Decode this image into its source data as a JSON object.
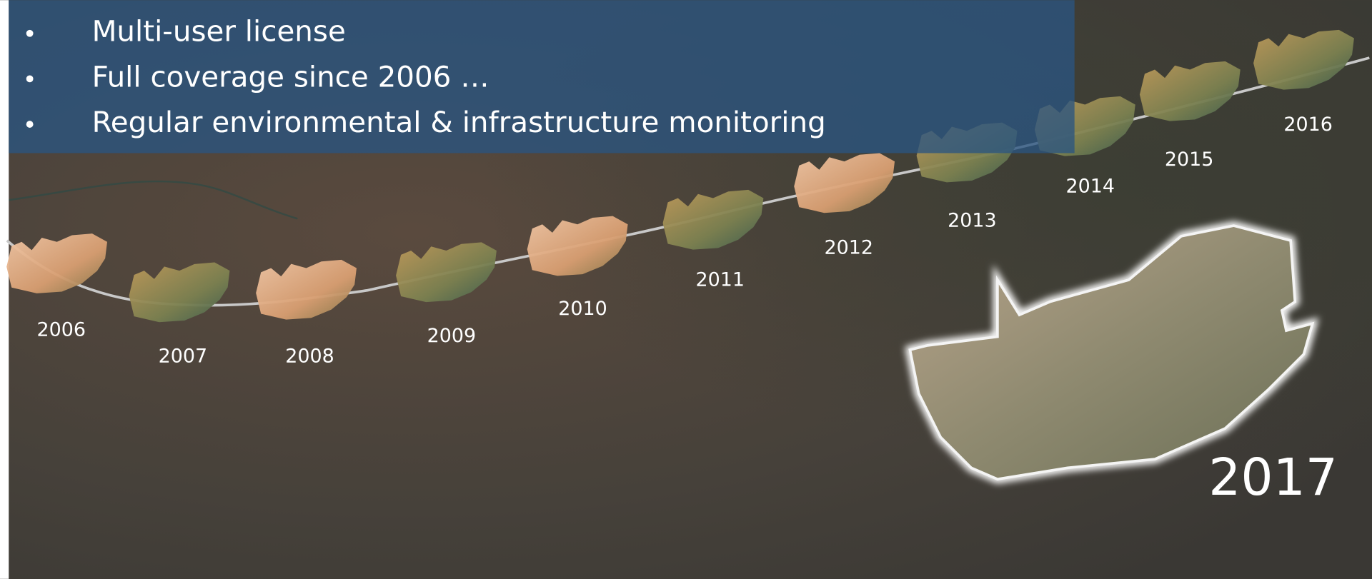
{
  "bullets": [
    "Multi-user license",
    "Full coverage since 2006 …",
    "Regular environmental & infrastructure monitoring"
  ],
  "timeline": {
    "years": [
      "2006",
      "2007",
      "2008",
      "2009",
      "2010",
      "2011",
      "2012",
      "2013",
      "2014",
      "2015",
      "2016"
    ],
    "current_year": "2017"
  }
}
